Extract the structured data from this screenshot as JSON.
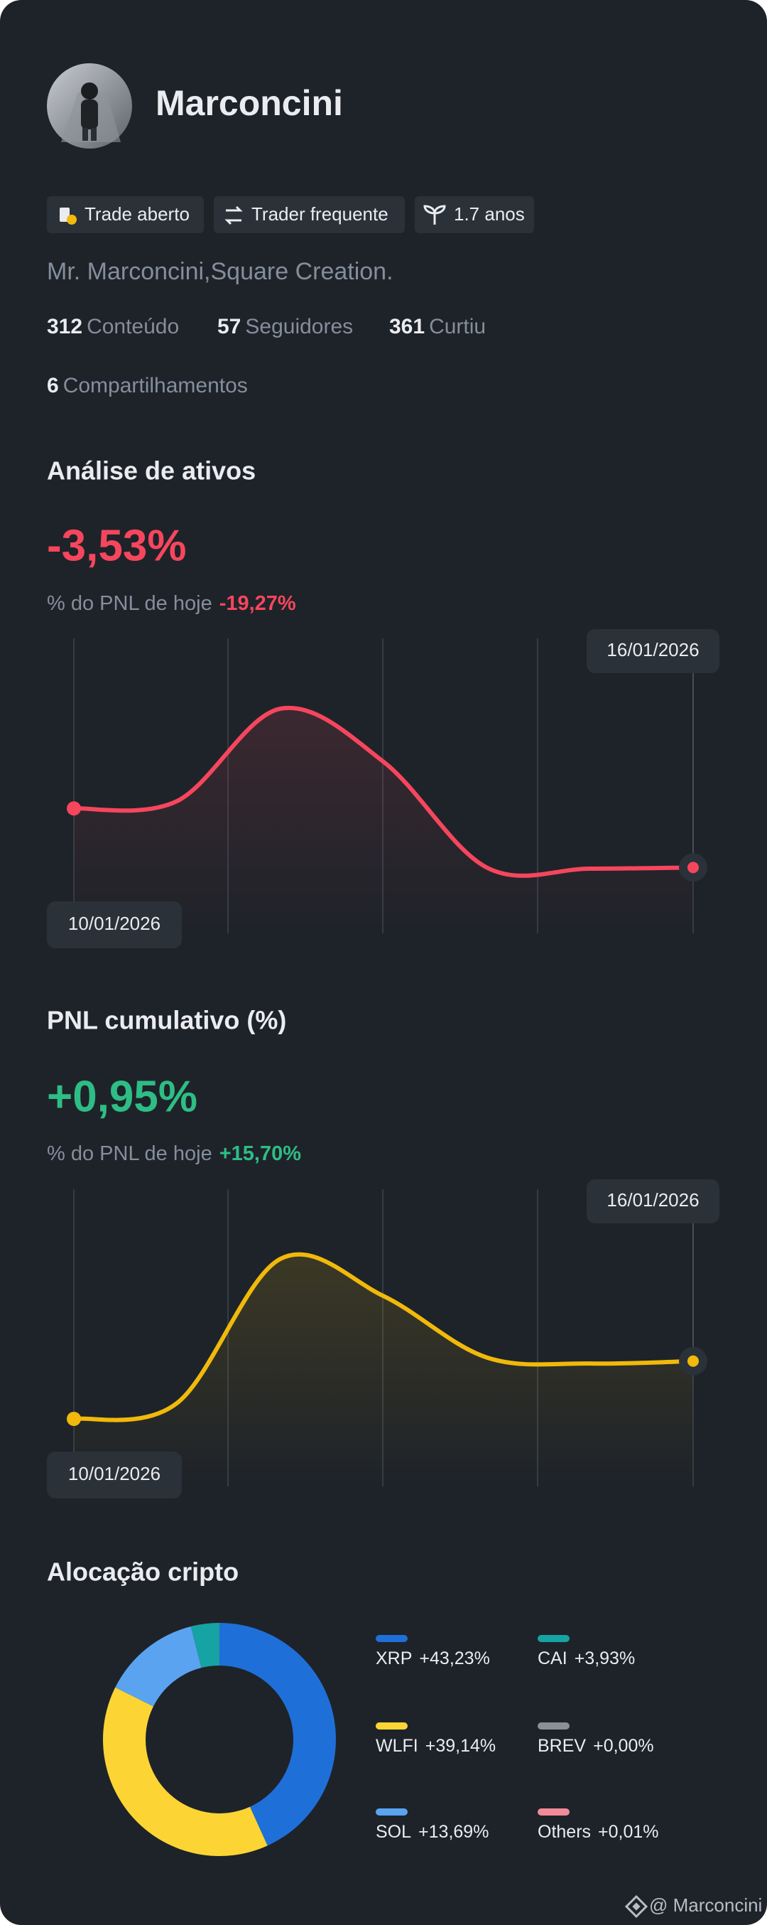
{
  "profile": {
    "name": "Marconcini",
    "badges": [
      "Trade aberto",
      "Trader frequente",
      "1.7 anos"
    ],
    "bio": "Mr. Marconcini,Square Creation.",
    "stats": [
      {
        "value": "312",
        "label": "Conteúdo"
      },
      {
        "value": "57",
        "label": "Seguidores"
      },
      {
        "value": "361",
        "label": "Curtiu"
      },
      {
        "value": "6",
        "label": "Compartilhamentos"
      }
    ]
  },
  "chart_data": [
    {
      "type": "line",
      "title": "Análise de ativos",
      "headline": "-3,53%",
      "today_label": "% do PNL de hoje",
      "today_value": "-19,27%",
      "categories": [
        "10/01/2026",
        null,
        null,
        null,
        null,
        null,
        "16/01/2026"
      ],
      "values": [
        0,
        0.44,
        5.96,
        2.79,
        -3.53,
        -3.6,
        -3.53
      ],
      "color": "#f6465d"
    },
    {
      "type": "line",
      "title": "PNL cumulativo (%)",
      "headline": "+0,95%",
      "today_label": "% do PNL de hoje",
      "today_value": "+15,70%",
      "categories": [
        "10/01/2026",
        null,
        null,
        null,
        null,
        null,
        "16/01/2026"
      ],
      "values": [
        0,
        0.26,
        2.63,
        2.02,
        1.01,
        0.91,
        0.95
      ],
      "color": "#f0b90b"
    },
    {
      "type": "pie",
      "title": "Alocação cripto",
      "categories": [
        "XRP",
        "WLFI",
        "SOL",
        "CAI",
        "BREV",
        "Others"
      ],
      "values": [
        43.23,
        39.14,
        13.69,
        3.93,
        0.0,
        0.01
      ],
      "value_labels": [
        "+43,23%",
        "+39,14%",
        "+13,69%",
        "+3,93%",
        "+0,00%",
        "+0,01%"
      ],
      "colors": [
        "#1f6fd8",
        "#fcd535",
        "#5aa3f0",
        "#16a3a3",
        "#8a8f98",
        "#f28b99"
      ]
    }
  ],
  "footer": {
    "handle": "@ Marconcini"
  }
}
